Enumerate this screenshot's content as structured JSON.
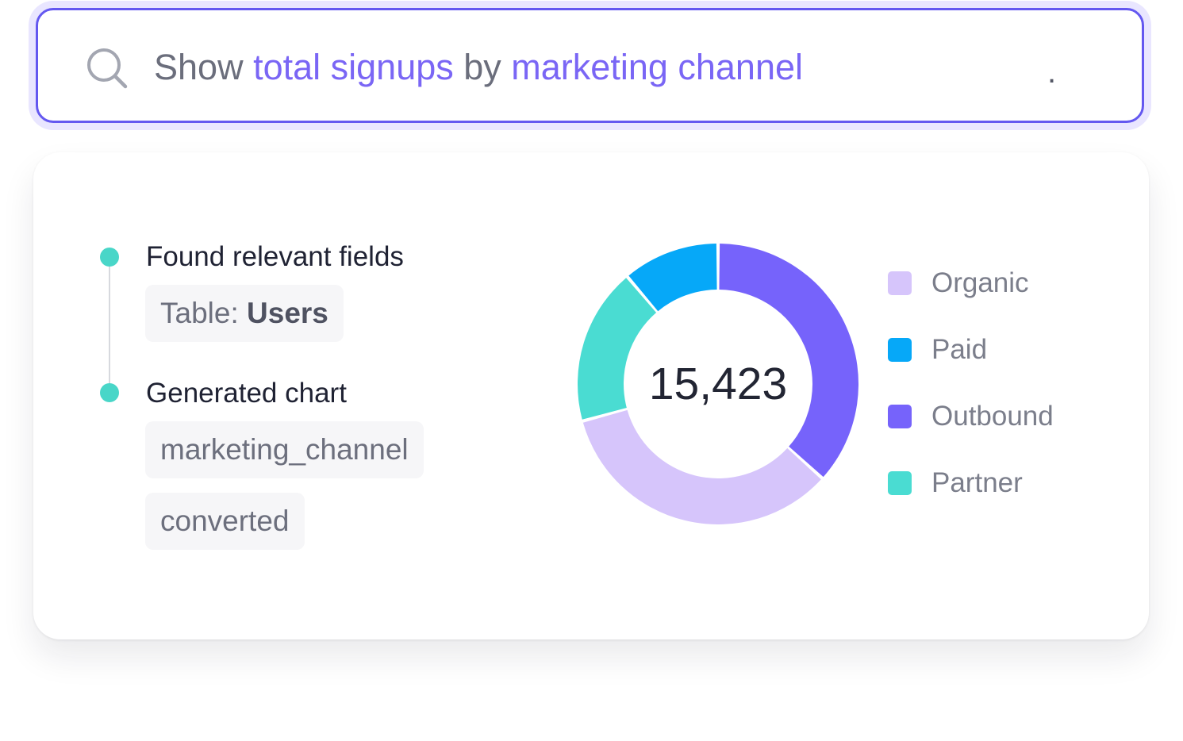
{
  "query": {
    "prefix": "Show ",
    "highlight_1": "total signups",
    "middle": " by ",
    "highlight_2": "marketing channel",
    "cursor": ".",
    "icon": "search-icon"
  },
  "steps": [
    {
      "title": "Found relevant fields",
      "chips": [
        {
          "label": "Table: ",
          "value": "Users"
        }
      ]
    },
    {
      "title": "Generated chart",
      "chips": [
        {
          "label": "marketing_channel"
        },
        {
          "label": "converted"
        }
      ]
    }
  ],
  "colors": {
    "accent": "#6458f0",
    "timeline_dot": "#49d6c8",
    "highlight_text": "#7a66f5"
  },
  "chart_data": {
    "type": "pie",
    "total": "15,423",
    "title": "",
    "legend_position": "right",
    "series": [
      {
        "name": "Organic",
        "value": 32,
        "color": "#d6c5fb"
      },
      {
        "name": "Paid",
        "value": 10.5,
        "color": "#06a8f8"
      },
      {
        "name": "Outbound",
        "value": 34.5,
        "color": "#7663fb"
      },
      {
        "name": "Partner",
        "value": 17,
        "color": "#4adcd2"
      }
    ],
    "draw_order": [
      "Outbound",
      "Organic",
      "Partner",
      "Paid"
    ]
  }
}
